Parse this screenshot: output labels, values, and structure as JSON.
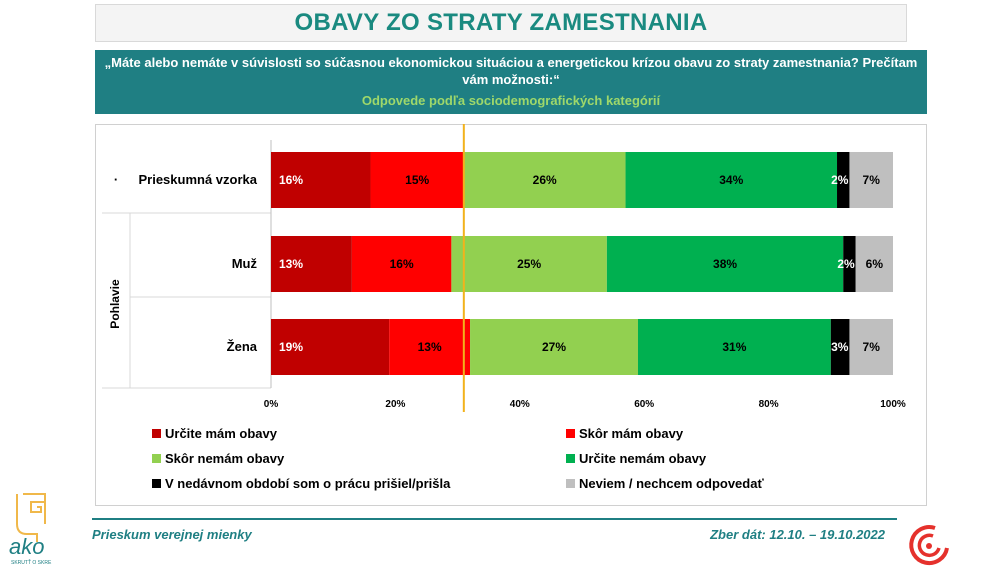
{
  "title": "OBAVY ZO STRATY ZAMESTNANIA",
  "question": "„Máte alebo nemáte v súvislosti so súčasnou ekonomickou situáciou a energetickou krízou obavu zo straty zamestnania? Prečítam vám možnosti:“",
  "subtitle": "Odpovede podľa sociodemografických kategórií",
  "chart_data": {
    "type": "bar",
    "orientation": "horizontal",
    "stacked": true,
    "categories": [
      "Prieskumná vzorka",
      "Muž",
      "Žena"
    ],
    "category_bullet": "·",
    "group_label": "Pohlavie",
    "series": [
      {
        "name": "Určite mám obavy",
        "color": "#c00000",
        "values": [
          16,
          13,
          19
        ],
        "labels": [
          "16%",
          "13%",
          "19%"
        ]
      },
      {
        "name": "Skôr mám obavy",
        "color": "#ff0000",
        "values": [
          15,
          16,
          13
        ],
        "labels": [
          "15%",
          "16%",
          "13%"
        ]
      },
      {
        "name": "Skôr nemám obavy",
        "color": "#92d050",
        "values": [
          26,
          25,
          27
        ],
        "labels": [
          "26%",
          "25%",
          "27%"
        ]
      },
      {
        "name": "Určite nemám obavy",
        "color": "#00b050",
        "values": [
          34,
          38,
          31
        ],
        "labels": [
          "34%",
          "38%",
          "31%"
        ]
      },
      {
        "name": "V nedávnom období som o prácu prišiel/prišla",
        "color": "#000000",
        "values": [
          2,
          2,
          3
        ],
        "labels": [
          "2%",
          "2%",
          "3%"
        ]
      },
      {
        "name": "Neviem / nechcem odpovedať",
        "color": "#bfbfbf",
        "values": [
          7,
          6,
          7
        ],
        "labels": [
          "7%",
          "6%",
          "7%"
        ]
      }
    ],
    "x_ticks": [
      "0%",
      "20%",
      "40%",
      "60%",
      "80%",
      "100%"
    ],
    "xlim": [
      0,
      100
    ],
    "reference_line": {
      "value": 31,
      "color": "#f2b21c"
    },
    "legend_position": "bottom"
  },
  "footer": {
    "left": "Prieskum verejnej mienky",
    "right": "Zber dát: 12.10. – 19.10.2022",
    "logo_text": "ako",
    "logo_subtext": "SKRUTŤ O SKRE"
  },
  "colors": {
    "teal": "#1f7f83",
    "title": "#1a8a80",
    "accent_green": "#9fd86a"
  }
}
